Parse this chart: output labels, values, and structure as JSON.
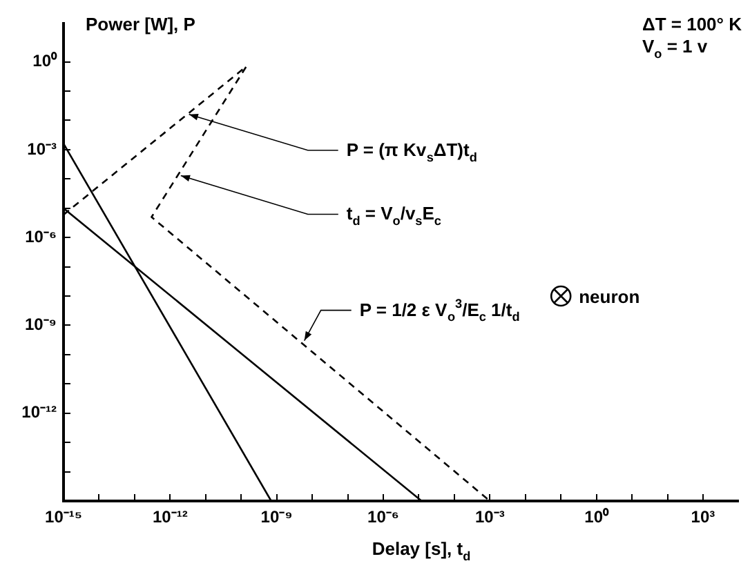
{
  "chart_data": {
    "type": "line",
    "xlabel": "Delay [s], t$_{d}$",
    "ylabel": "Power [W], P",
    "log": "xy",
    "grid": false,
    "xlim": [
      1e-15,
      10000.0
    ],
    "ylim": [
      1e-15,
      20
    ],
    "xticks": [
      {
        "value": 1e-15,
        "label": "10⁻¹⁵"
      },
      {
        "value": 1e-14,
        "label": null
      },
      {
        "value": 1e-13,
        "label": null
      },
      {
        "value": 1e-12,
        "label": "10⁻¹²"
      },
      {
        "value": 1e-11,
        "label": null
      },
      {
        "value": 1e-10,
        "label": null
      },
      {
        "value": 1e-09,
        "label": "10⁻⁹"
      },
      {
        "value": 1e-08,
        "label": null
      },
      {
        "value": 1e-07,
        "label": null
      },
      {
        "value": 1e-06,
        "label": "10⁻⁶"
      },
      {
        "value": 1e-05,
        "label": null
      },
      {
        "value": 0.0001,
        "label": null
      },
      {
        "value": 0.001,
        "label": "10⁻³"
      },
      {
        "value": 0.01,
        "label": null
      },
      {
        "value": 0.1,
        "label": null
      },
      {
        "value": 1,
        "label": "10⁰"
      },
      {
        "value": 10,
        "label": null
      },
      {
        "value": 100,
        "label": null
      },
      {
        "value": 1000,
        "label": "10³"
      }
    ],
    "yticks": [
      {
        "value": 1e-15,
        "label": null
      },
      {
        "value": 1e-14,
        "label": null
      },
      {
        "value": 1e-13,
        "label": null
      },
      {
        "value": 1e-12,
        "label": "10⁻¹²"
      },
      {
        "value": 1e-11,
        "label": null
      },
      {
        "value": 1e-10,
        "label": null
      },
      {
        "value": 1e-09,
        "label": "10⁻⁹"
      },
      {
        "value": 1e-08,
        "label": null
      },
      {
        "value": 1e-07,
        "label": null
      },
      {
        "value": 1e-06,
        "label": "10⁻⁶"
      },
      {
        "value": 1e-05,
        "label": null
      },
      {
        "value": 0.0001,
        "label": null
      },
      {
        "value": 0.001,
        "label": "10⁻³"
      },
      {
        "value": 0.01,
        "label": null
      },
      {
        "value": 0.1,
        "label": null
      },
      {
        "value": 1,
        "label": "10⁰"
      }
    ],
    "series": [
      {
        "color": "#000000",
        "line_style": "solid",
        "marker": "none",
        "x": [
          1e-15,
          7e-10
        ],
        "values": [
          0.0016,
          1e-15
        ]
      },
      {
        "color": "#000000",
        "line_style": "solid",
        "marker": "none",
        "x": [
          1e-15,
          1.2e-05
        ],
        "values": [
          1e-05,
          1e-15
        ]
      },
      {
        "color": "#000000",
        "line_style": "dashed",
        "marker": "none",
        "x": [
          1e-15,
          1.4e-10,
          3e-13,
          0.001
        ],
        "values": [
          6e-06,
          0.7,
          5e-06,
          1e-15
        ]
      },
      {
        "type": "scatter",
        "name": "neuron",
        "color": "#000000",
        "marker": "circle",
        "x": [
          0.1
        ],
        "values": [
          1e-08
        ]
      }
    ],
    "annotations": [
      {
        "text": "P = (π Kv$_{s}$ΔT)t$_{d}$",
        "x": 3.4e-12,
        "y": 0.016
      },
      {
        "text": "t$_{d}$ = V$_{o}$/v$_{s}$E$_{c}$",
        "x": 2e-12,
        "y": 0.00013
      },
      {
        "text": "P = 1/2 ε V$_{o}$$^{3}$/E$_{c}$ 1/t$_{d}$",
        "x": 6e-09,
        "y": 3e-10
      },
      "ΔT = 100° K",
      "V$_{o}$ = 1 v"
    ]
  }
}
